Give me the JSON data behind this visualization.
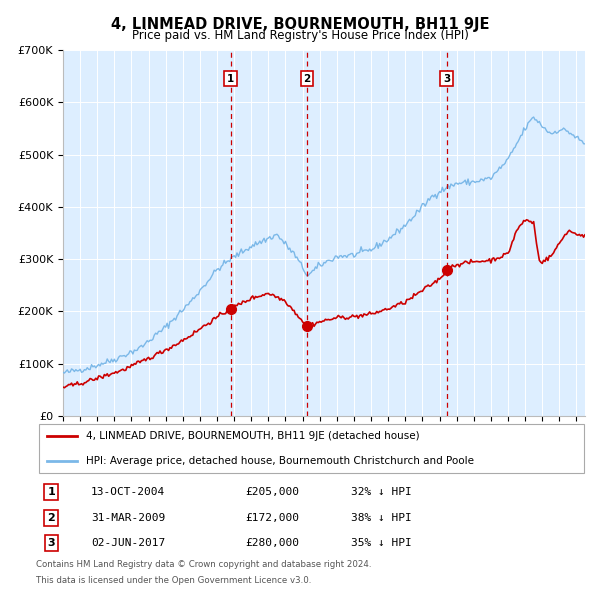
{
  "title": "4, LINMEAD DRIVE, BOURNEMOUTH, BH11 9JE",
  "subtitle": "Price paid vs. HM Land Registry's House Price Index (HPI)",
  "ylim": [
    0,
    700000
  ],
  "yticks": [
    0,
    100000,
    200000,
    300000,
    400000,
    500000,
    600000,
    700000
  ],
  "ytick_labels": [
    "£0",
    "£100K",
    "£200K",
    "£300K",
    "£400K",
    "£500K",
    "£600K",
    "£700K"
  ],
  "bg_color": "#ddeeff",
  "hpi_color": "#7bb8e8",
  "price_color": "#cc0000",
  "vline_color": "#cc0000",
  "grid_color": "#ffffff",
  "purchases": [
    {
      "label": "1",
      "date_num": 2004.79,
      "price": 205000,
      "text": "13-OCT-2004",
      "price_str": "£205,000",
      "below": "32% ↓ HPI"
    },
    {
      "label": "2",
      "date_num": 2009.25,
      "price": 172000,
      "text": "31-MAR-2009",
      "price_str": "£172,000",
      "below": "38% ↓ HPI"
    },
    {
      "label": "3",
      "date_num": 2017.42,
      "price": 280000,
      "text": "02-JUN-2017",
      "price_str": "£280,000",
      "below": "35% ↓ HPI"
    }
  ],
  "legend_line1": "4, LINMEAD DRIVE, BOURNEMOUTH, BH11 9JE (detached house)",
  "legend_line2": "HPI: Average price, detached house, Bournemouth Christchurch and Poole",
  "footnote1": "Contains HM Land Registry data © Crown copyright and database right 2024.",
  "footnote2": "This data is licensed under the Open Government Licence v3.0.",
  "xlim_start": 1995.0,
  "xlim_end": 2025.5
}
